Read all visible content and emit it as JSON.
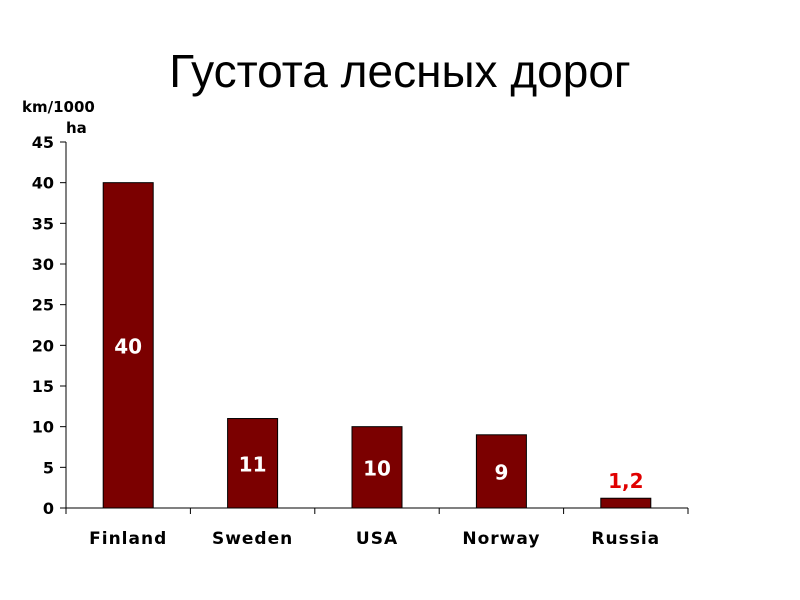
{
  "chart_data": {
    "type": "bar",
    "title": "Густота лесных дорог",
    "ylabel_line1": "km/1000",
    "ylabel_line2": "ha",
    "categories": [
      "Finland",
      "Sweden",
      "USA",
      "Norway",
      "Russia"
    ],
    "values": [
      40,
      11,
      10,
      9,
      1.2
    ],
    "data_labels": [
      "40",
      "11",
      "10",
      "9",
      "1,2"
    ],
    "y_ticks": [
      "0",
      "5",
      "10",
      "15",
      "20",
      "25",
      "30",
      "35",
      "40",
      "45"
    ],
    "ylim": [
      0,
      45
    ],
    "grid": false,
    "legend": "none",
    "bar_color": "#7b0000",
    "label_inside_color": "#ffffff",
    "label_outside_color": "#e00000"
  }
}
